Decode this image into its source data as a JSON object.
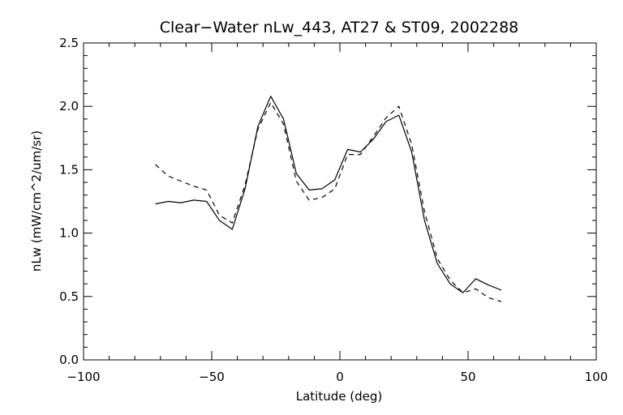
{
  "chart_data": {
    "type": "line",
    "title": "Clear−Water nLw_443, AT27 & ST09, 2002288",
    "xlabel": "Latitude (deg)",
    "ylabel": "nLw (mW/cm^2/um/sr)",
    "xlim": [
      -100,
      100
    ],
    "ylim": [
      0.0,
      2.5
    ],
    "x_ticks": [
      -100,
      -50,
      0,
      50,
      100
    ],
    "x_tick_labels": [
      "−100",
      "−50",
      "0",
      "50",
      "100"
    ],
    "y_ticks": [
      0.0,
      0.5,
      1.0,
      1.5,
      2.0,
      2.5
    ],
    "y_tick_labels": [
      "0.0",
      "0.5",
      "1.0",
      "1.5",
      "2.0",
      "2.5"
    ],
    "grid": false,
    "legend": "none",
    "series": [
      {
        "style": "solid",
        "color": "#000000",
        "x": [
          -72,
          -67,
          -62,
          -57,
          -52,
          -47,
          -42,
          -37,
          -32,
          -27,
          -22,
          -17,
          -12,
          -7,
          -2,
          3,
          8,
          13,
          18,
          23,
          28,
          33,
          38,
          43,
          48,
          53,
          58,
          63
        ],
        "y": [
          1.23,
          1.25,
          1.24,
          1.26,
          1.25,
          1.1,
          1.03,
          1.35,
          1.84,
          2.08,
          1.9,
          1.47,
          1.34,
          1.35,
          1.42,
          1.66,
          1.64,
          1.74,
          1.88,
          1.93,
          1.64,
          1.1,
          0.76,
          0.6,
          0.53,
          0.64,
          0.59,
          0.55
        ]
      },
      {
        "style": "dashed",
        "color": "#000000",
        "x": [
          -72,
          -67,
          -62,
          -57,
          -52,
          -47,
          -42,
          -37,
          -32,
          -27,
          -22,
          -17,
          -12,
          -7,
          -2,
          3,
          8,
          13,
          18,
          23,
          28,
          33,
          38,
          43,
          48,
          53,
          58,
          63
        ],
        "y": [
          1.54,
          1.45,
          1.41,
          1.37,
          1.34,
          1.14,
          1.08,
          1.38,
          1.82,
          2.03,
          1.86,
          1.41,
          1.26,
          1.28,
          1.35,
          1.62,
          1.62,
          1.76,
          1.91,
          2.0,
          1.7,
          1.17,
          0.8,
          0.63,
          0.53,
          0.56,
          0.49,
          0.46
        ]
      }
    ]
  }
}
